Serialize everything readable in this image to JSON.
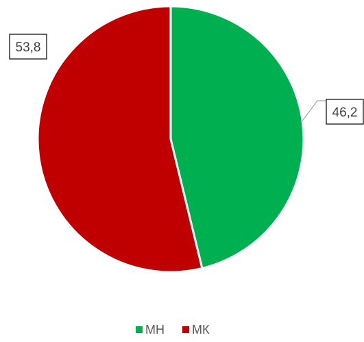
{
  "chart_data": {
    "type": "pie",
    "title": "",
    "categories": [
      "МН",
      "МК"
    ],
    "values": [
      46.2,
      53.8
    ],
    "data_labels": [
      "46,2",
      "53,8"
    ],
    "colors": [
      "#00b050",
      "#c00000"
    ],
    "start_angle_deg": 0,
    "direction": "clockwise",
    "legend_position": "bottom",
    "label_style": "boxed",
    "leader_lines": true
  }
}
